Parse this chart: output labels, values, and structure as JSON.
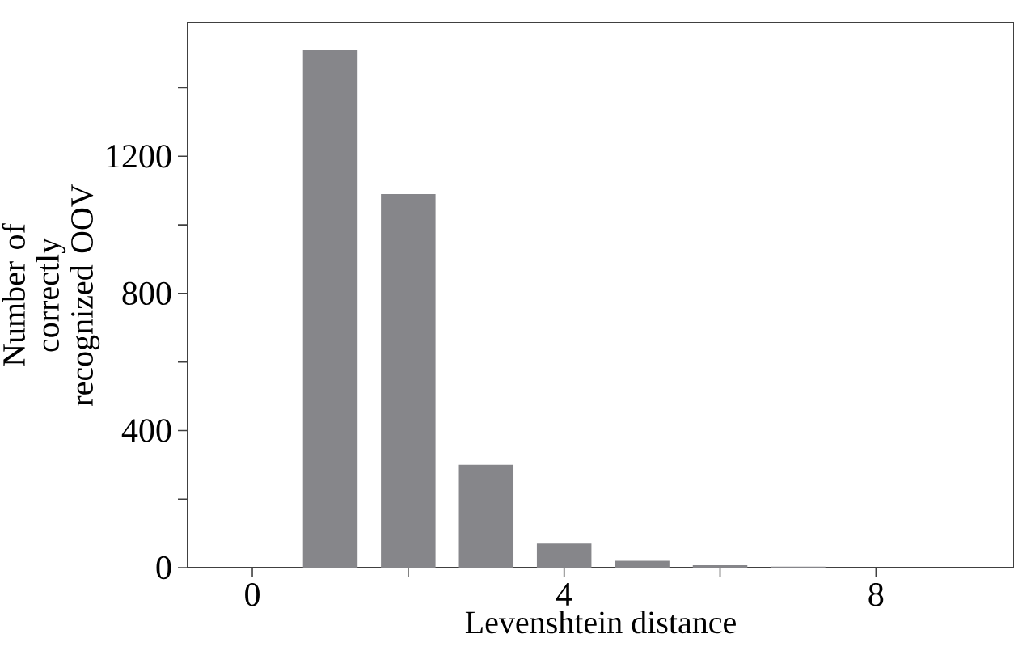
{
  "chart_data": {
    "type": "bar",
    "xlabel": "Levenshtein distance",
    "ylabel": "Number of correctly recognized OOV",
    "x": [
      1,
      2,
      3,
      4,
      5,
      6,
      7
    ],
    "values": [
      1510,
      1090,
      300,
      70,
      20,
      7,
      3
    ],
    "color": "#86868a",
    "xlim": [
      -0.83,
      9.77
    ],
    "ylim": [
      0,
      1590
    ],
    "xticks": [
      0,
      {
        "value": 2,
        "label": null
      },
      4,
      {
        "value": 6,
        "label": null
      },
      8
    ],
    "yticks": [
      0,
      {
        "value": 200,
        "label": null
      },
      400,
      {
        "value": 600,
        "label": null
      },
      800,
      {
        "value": 1000,
        "label": null
      },
      1200,
      {
        "value": 1400,
        "label": null
      }
    ],
    "grid": false
  }
}
